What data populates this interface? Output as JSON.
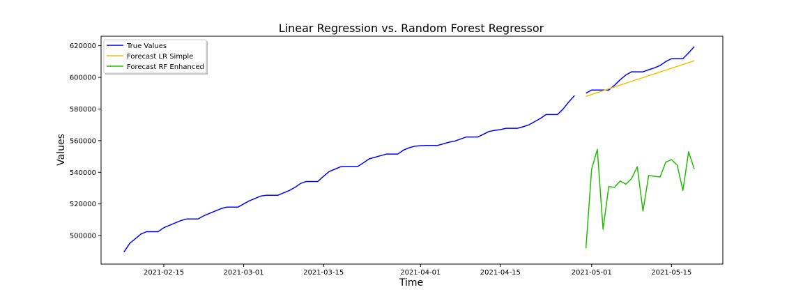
{
  "chart_data": {
    "type": "line",
    "title": "Linear Regression vs. Random Forest Regressor",
    "xlabel": "Time",
    "ylabel": "Values",
    "x_ticks": [
      "2021-02-15",
      "2021-03-01",
      "2021-03-15",
      "2021-04-01",
      "2021-04-15",
      "2021-05-01",
      "2021-05-15"
    ],
    "y_ticks": [
      "500000",
      "520000",
      "540000",
      "560000",
      "580000",
      "600000",
      "620000"
    ],
    "xlim": [
      "2021-02-04",
      "2021-05-24"
    ],
    "ylim": [
      482000,
      626000
    ],
    "grid": false,
    "legend_position": "top-left",
    "series": [
      {
        "name": "True Values",
        "color": "#0000ff",
        "points": [
          [
            "2021-02-08",
            489500
          ],
          [
            "2021-02-09",
            495000
          ],
          [
            "2021-02-10",
            498000
          ],
          [
            "2021-02-11",
            501000
          ],
          [
            "2021-02-12",
            502500
          ],
          [
            "2021-02-13",
            502500
          ],
          [
            "2021-02-14",
            502500
          ],
          [
            "2021-02-15",
            505000
          ],
          [
            "2021-02-16",
            506500
          ],
          [
            "2021-02-17",
            508000
          ],
          [
            "2021-02-18",
            509500
          ],
          [
            "2021-02-19",
            510500
          ],
          [
            "2021-02-20",
            510500
          ],
          [
            "2021-02-21",
            510500
          ],
          [
            "2021-02-22",
            512500
          ],
          [
            "2021-02-23",
            514000
          ],
          [
            "2021-02-24",
            515500
          ],
          [
            "2021-02-25",
            517000
          ],
          [
            "2021-02-26",
            518000
          ],
          [
            "2021-02-27",
            518000
          ],
          [
            "2021-02-28",
            518000
          ],
          [
            "2021-03-01",
            520000
          ],
          [
            "2021-03-02",
            522000
          ],
          [
            "2021-03-03",
            523500
          ],
          [
            "2021-03-04",
            525000
          ],
          [
            "2021-03-05",
            525500
          ],
          [
            "2021-03-06",
            525500
          ],
          [
            "2021-03-07",
            525500
          ],
          [
            "2021-03-08",
            527000
          ],
          [
            "2021-03-09",
            528500
          ],
          [
            "2021-03-10",
            530500
          ],
          [
            "2021-03-11",
            533000
          ],
          [
            "2021-03-12",
            534200
          ],
          [
            "2021-03-13",
            534200
          ],
          [
            "2021-03-14",
            534200
          ],
          [
            "2021-03-15",
            537500
          ],
          [
            "2021-03-16",
            540500
          ],
          [
            "2021-03-17",
            542000
          ],
          [
            "2021-03-18",
            543500
          ],
          [
            "2021-03-19",
            543700
          ],
          [
            "2021-03-20",
            543700
          ],
          [
            "2021-03-21",
            543700
          ],
          [
            "2021-03-22",
            546000
          ],
          [
            "2021-03-23",
            548500
          ],
          [
            "2021-03-24",
            549500
          ],
          [
            "2021-03-25",
            550500
          ],
          [
            "2021-03-26",
            551500
          ],
          [
            "2021-03-27",
            551500
          ],
          [
            "2021-03-28",
            551500
          ],
          [
            "2021-03-29",
            554000
          ],
          [
            "2021-03-30",
            555500
          ],
          [
            "2021-03-31",
            556500
          ],
          [
            "2021-04-01",
            556800
          ],
          [
            "2021-04-02",
            557000
          ],
          [
            "2021-04-03",
            557000
          ],
          [
            "2021-04-04",
            557000
          ],
          [
            "2021-04-05",
            558000
          ],
          [
            "2021-04-06",
            559000
          ],
          [
            "2021-04-07",
            559700
          ],
          [
            "2021-04-08",
            561000
          ],
          [
            "2021-04-09",
            562300
          ],
          [
            "2021-04-10",
            562300
          ],
          [
            "2021-04-11",
            562300
          ],
          [
            "2021-04-12",
            564000
          ],
          [
            "2021-04-13",
            565800
          ],
          [
            "2021-04-14",
            566500
          ],
          [
            "2021-04-15",
            567000
          ],
          [
            "2021-04-16",
            567800
          ],
          [
            "2021-04-17",
            567800
          ],
          [
            "2021-04-18",
            567800
          ],
          [
            "2021-04-19",
            568800
          ],
          [
            "2021-04-20",
            570000
          ],
          [
            "2021-04-21",
            572000
          ],
          [
            "2021-04-22",
            574000
          ],
          [
            "2021-04-23",
            576500
          ],
          [
            "2021-04-24",
            576500
          ],
          [
            "2021-04-25",
            576500
          ],
          [
            "2021-04-26",
            580000
          ],
          [
            "2021-04-27",
            584500
          ],
          [
            "2021-04-28",
            588500
          ]
        ]
      },
      {
        "name": "True Values",
        "color": "#0000ff",
        "points": [
          [
            "2021-04-30",
            590000
          ],
          [
            "2021-05-01",
            592000
          ],
          [
            "2021-05-02",
            592000
          ],
          [
            "2021-05-03",
            592000
          ],
          [
            "2021-05-04",
            592000
          ],
          [
            "2021-05-05",
            595000
          ],
          [
            "2021-05-06",
            598500
          ],
          [
            "2021-05-07",
            601500
          ],
          [
            "2021-05-08",
            603500
          ],
          [
            "2021-05-09",
            603500
          ],
          [
            "2021-05-10",
            603500
          ],
          [
            "2021-05-11",
            604800
          ],
          [
            "2021-05-12",
            606000
          ],
          [
            "2021-05-13",
            607500
          ],
          [
            "2021-05-14",
            610000
          ],
          [
            "2021-05-15",
            611800
          ],
          [
            "2021-05-16",
            611800
          ],
          [
            "2021-05-17",
            611800
          ],
          [
            "2021-05-18",
            615500
          ],
          [
            "2021-05-19",
            619500
          ]
        ]
      },
      {
        "name": "Forecast LR Simple",
        "color": "#f0c000",
        "points": [
          [
            "2021-04-30",
            588000
          ],
          [
            "2021-05-19",
            610500
          ]
        ]
      },
      {
        "name": "Forecast RF Enhanced",
        "color": "#22bb00",
        "points": [
          [
            "2021-04-30",
            492000
          ],
          [
            "2021-05-01",
            542000
          ],
          [
            "2021-05-02",
            554500
          ],
          [
            "2021-05-03",
            504000
          ],
          [
            "2021-05-04",
            531000
          ],
          [
            "2021-05-05",
            530500
          ],
          [
            "2021-05-06",
            534500
          ],
          [
            "2021-05-07",
            532500
          ],
          [
            "2021-05-08",
            536000
          ],
          [
            "2021-05-09",
            543500
          ],
          [
            "2021-05-10",
            515500
          ],
          [
            "2021-05-11",
            538000
          ],
          [
            "2021-05-12",
            537500
          ],
          [
            "2021-05-13",
            537000
          ],
          [
            "2021-05-14",
            546500
          ],
          [
            "2021-05-15",
            548000
          ],
          [
            "2021-05-16",
            544500
          ],
          [
            "2021-05-17",
            528500
          ],
          [
            "2021-05-18",
            553000
          ],
          [
            "2021-05-19",
            542000
          ]
        ]
      }
    ],
    "legend": [
      {
        "label": "True Values",
        "color": "#0000ff"
      },
      {
        "label": "Forecast LR Simple",
        "color": "#f0c000"
      },
      {
        "label": "Forecast RF Enhanced",
        "color": "#22bb00"
      }
    ]
  }
}
